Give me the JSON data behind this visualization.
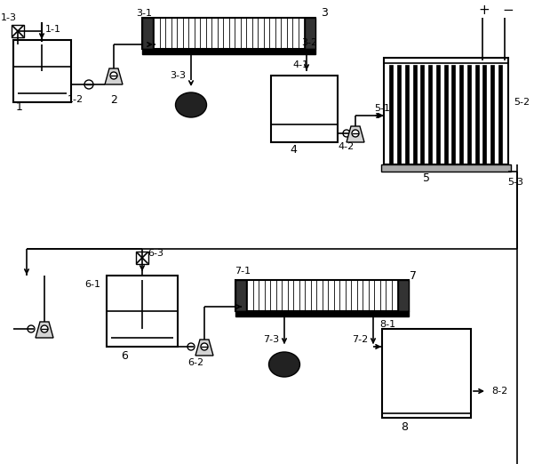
{
  "title": "",
  "bg_color": "#ffffff",
  "line_color": "#000000",
  "fig_width": 6.01,
  "fig_height": 5.22,
  "dpi": 100
}
